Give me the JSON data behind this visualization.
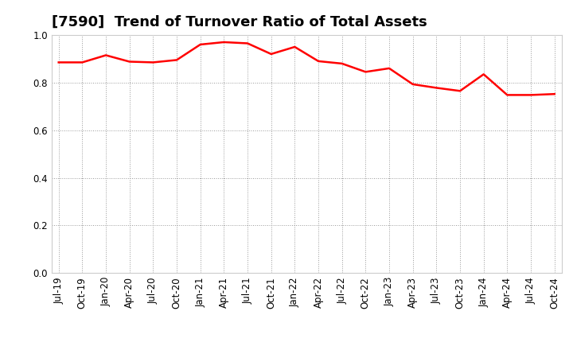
{
  "title": "[7590]  Trend of Turnover Ratio of Total Assets",
  "labels": [
    "Jul-19",
    "Oct-19",
    "Jan-20",
    "Apr-20",
    "Jul-20",
    "Oct-20",
    "Jan-21",
    "Apr-21",
    "Jul-21",
    "Oct-21",
    "Jan-22",
    "Apr-22",
    "Jul-22",
    "Oct-22",
    "Jan-23",
    "Apr-23",
    "Jul-23",
    "Oct-23",
    "Jan-24",
    "Apr-24",
    "Jul-24",
    "Oct-24"
  ],
  "values": [
    0.885,
    0.885,
    0.915,
    0.888,
    0.885,
    0.895,
    0.96,
    0.97,
    0.965,
    0.92,
    0.95,
    0.89,
    0.88,
    0.845,
    0.86,
    0.793,
    0.778,
    0.765,
    0.835,
    0.748,
    0.748,
    0.752
  ],
  "line_color": "#ff0000",
  "line_width": 1.8,
  "ylim": [
    0.0,
    1.0
  ],
  "yticks": [
    0.0,
    0.2,
    0.4,
    0.6,
    0.8,
    1.0
  ],
  "background_color": "#ffffff",
  "grid_color": "#999999",
  "title_fontsize": 13,
  "tick_fontsize": 8.5
}
